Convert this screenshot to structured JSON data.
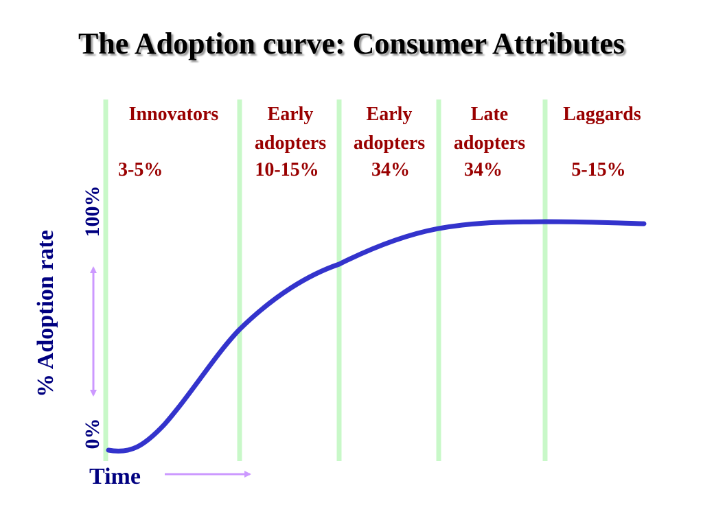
{
  "title": "The Adoption curve: Consumer Attributes",
  "colors": {
    "curve": "#3333cc",
    "divider": "#c8f8c8",
    "arrow": "#cc99ff",
    "segment_text": "#990000",
    "axis_text": "#000080",
    "title_text": "#000000"
  },
  "segments": [
    {
      "lines": [
        "Innovators"
      ],
      "percent": "3-5%"
    },
    {
      "lines": [
        "Early",
        "adopters"
      ],
      "percent": "10-15%"
    },
    {
      "lines": [
        "Early",
        "adopters"
      ],
      "percent": "34%"
    },
    {
      "lines": [
        "Late",
        "adopters"
      ],
      "percent": "34%"
    },
    {
      "lines": [
        "Laggards"
      ],
      "percent": "5-15%"
    }
  ],
  "axis": {
    "y_label": "% Adoption rate",
    "y_top": "100%",
    "y_bottom": "0%",
    "x_label": "Time"
  }
}
